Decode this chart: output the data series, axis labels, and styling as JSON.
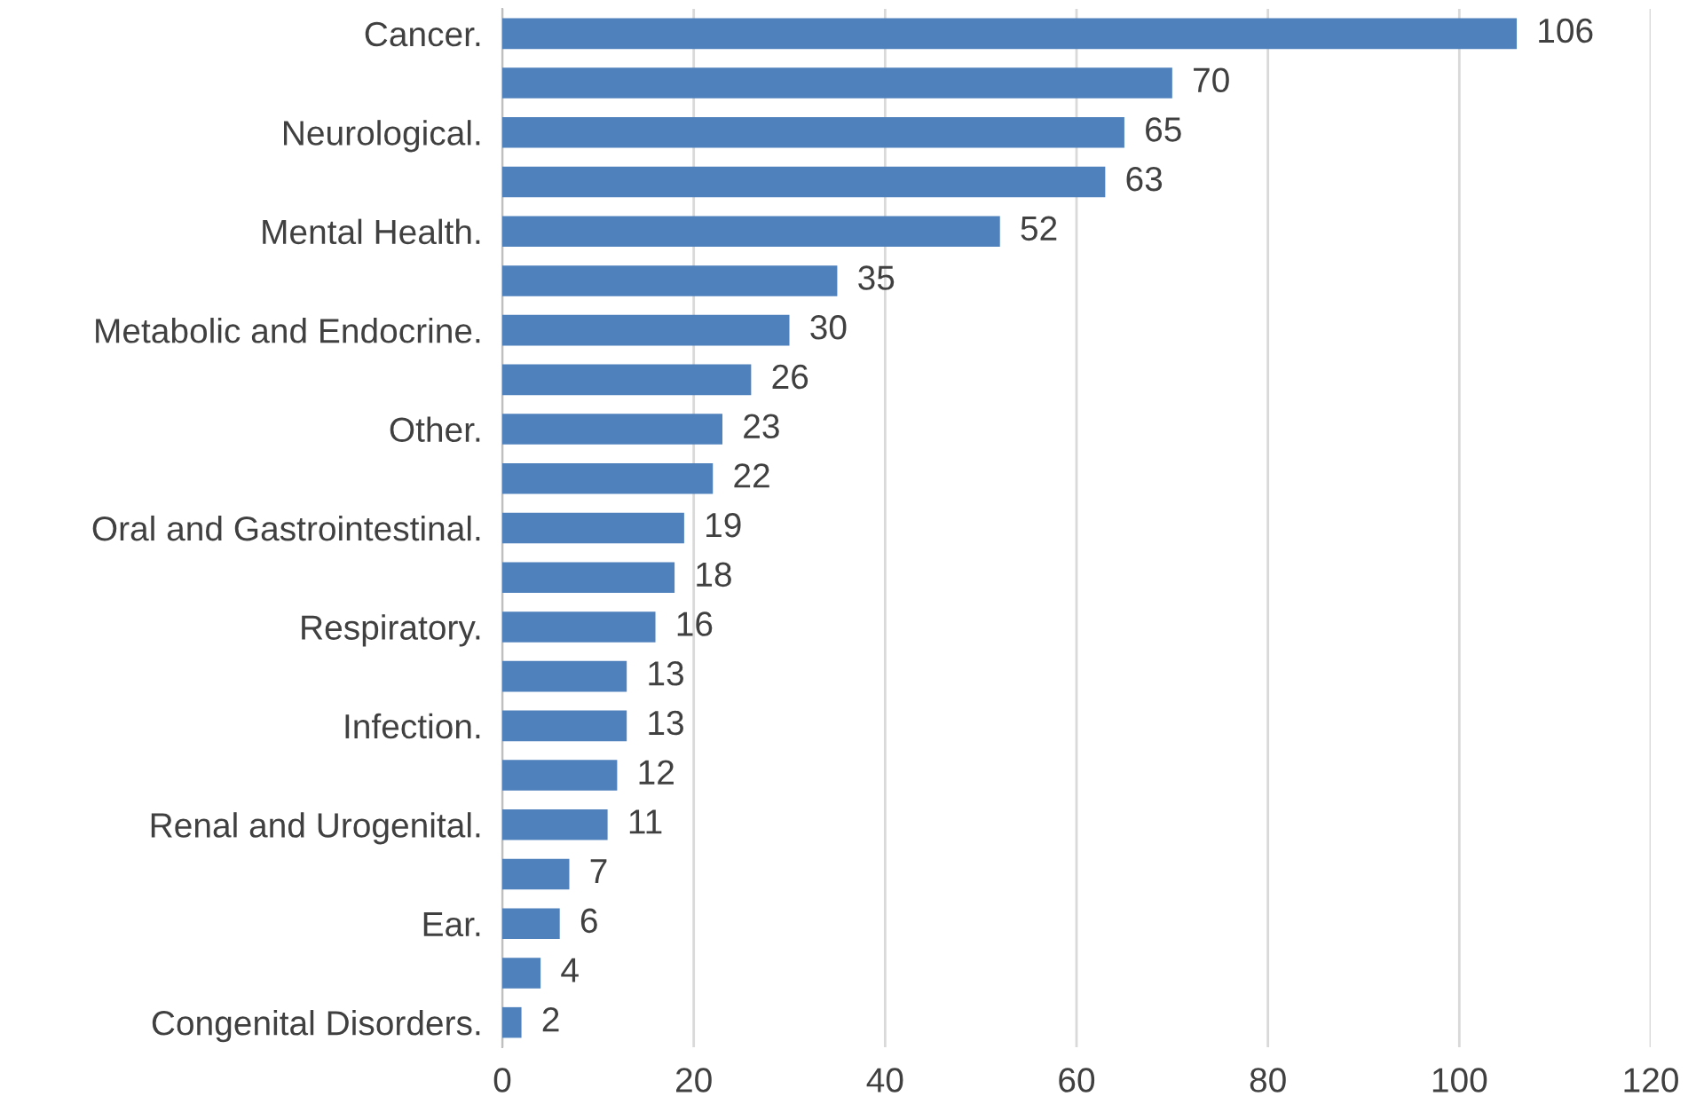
{
  "chart_data": {
    "type": "bar",
    "orientation": "horizontal",
    "categories": [
      "Cancer.",
      null,
      "Neurological.",
      null,
      "Mental Health.",
      null,
      "Metabolic and Endocrine.",
      null,
      "Other.",
      null,
      "Oral and Gastrointestinal.",
      null,
      "Respiratory.",
      null,
      "Infection.",
      null,
      "Renal and Urogenital.",
      null,
      "Ear.",
      null,
      "Congenital Disorders."
    ],
    "values": [
      106,
      70,
      65,
      63,
      52,
      35,
      30,
      26,
      23,
      22,
      19,
      18,
      16,
      13,
      13,
      12,
      11,
      7,
      6,
      4,
      2
    ],
    "color": "#4f81bd",
    "xlim": [
      0,
      120
    ],
    "xticks": [
      0,
      20,
      40,
      60,
      80,
      100,
      120
    ],
    "grid": "x",
    "data_labels": true
  }
}
